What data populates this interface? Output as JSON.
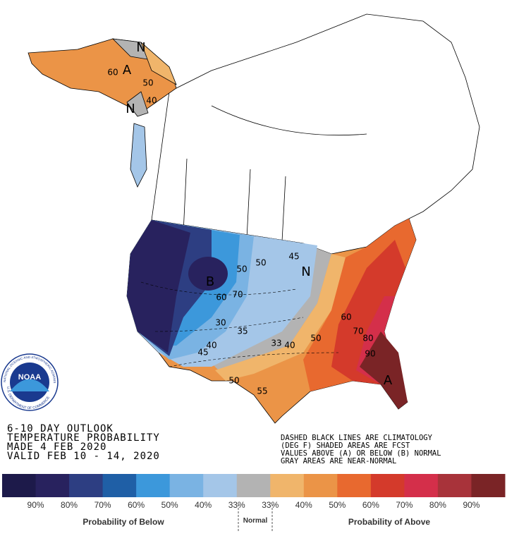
{
  "header": {
    "lines": [
      "6-10 DAY OUTLOOK",
      "TEMPERATURE PROBABILITY",
      "MADE  4 FEB 2020",
      "VALID  FEB 10 - 14, 2020"
    ]
  },
  "notes": {
    "lines": [
      "DASHED BLACK LINES ARE CLIMATOLOGY",
      "(DEG F) SHADED AREAS ARE FCST",
      "VALUES ABOVE (A) OR BELOW (B) NORMAL",
      "GRAY AREAS ARE NEAR-NORMAL"
    ]
  },
  "logo": {
    "text": "NOAA",
    "ring_top": "NATIONAL OCEANIC AND ATMOSPHERIC ADMINISTRATION",
    "ring_bottom": "U.S. DEPARTMENT OF COMMERCE"
  },
  "map": {
    "labels": [
      "A",
      "60",
      "50",
      "40",
      "N",
      "N",
      "B",
      "50",
      "50",
      "60",
      "70",
      "30",
      "35",
      "40",
      "45",
      "N",
      "45",
      "33",
      "40",
      "50",
      "60",
      "70",
      "80",
      "90",
      "A",
      "50",
      "55"
    ]
  },
  "legend": {
    "colors": [
      "#1d1a4a",
      "#28225e",
      "#2d3e82",
      "#1f5fa6",
      "#3c98db",
      "#7ab3e3",
      "#a4c6e8",
      "#b3b3b3",
      "#f0b56b",
      "#eb9447",
      "#e8692f",
      "#d43a2b",
      "#d42f4a",
      "#a8333a",
      "#7a2426"
    ],
    "ticks": [
      "90%",
      "80%",
      "70%",
      "60%",
      "50%",
      "40%",
      "33%",
      "33%",
      "40%",
      "50%",
      "60%",
      "70%",
      "80%",
      "90%"
    ],
    "below_label": "Probability of Below",
    "normal_label": "Normal",
    "above_label": "Probability of Above"
  }
}
